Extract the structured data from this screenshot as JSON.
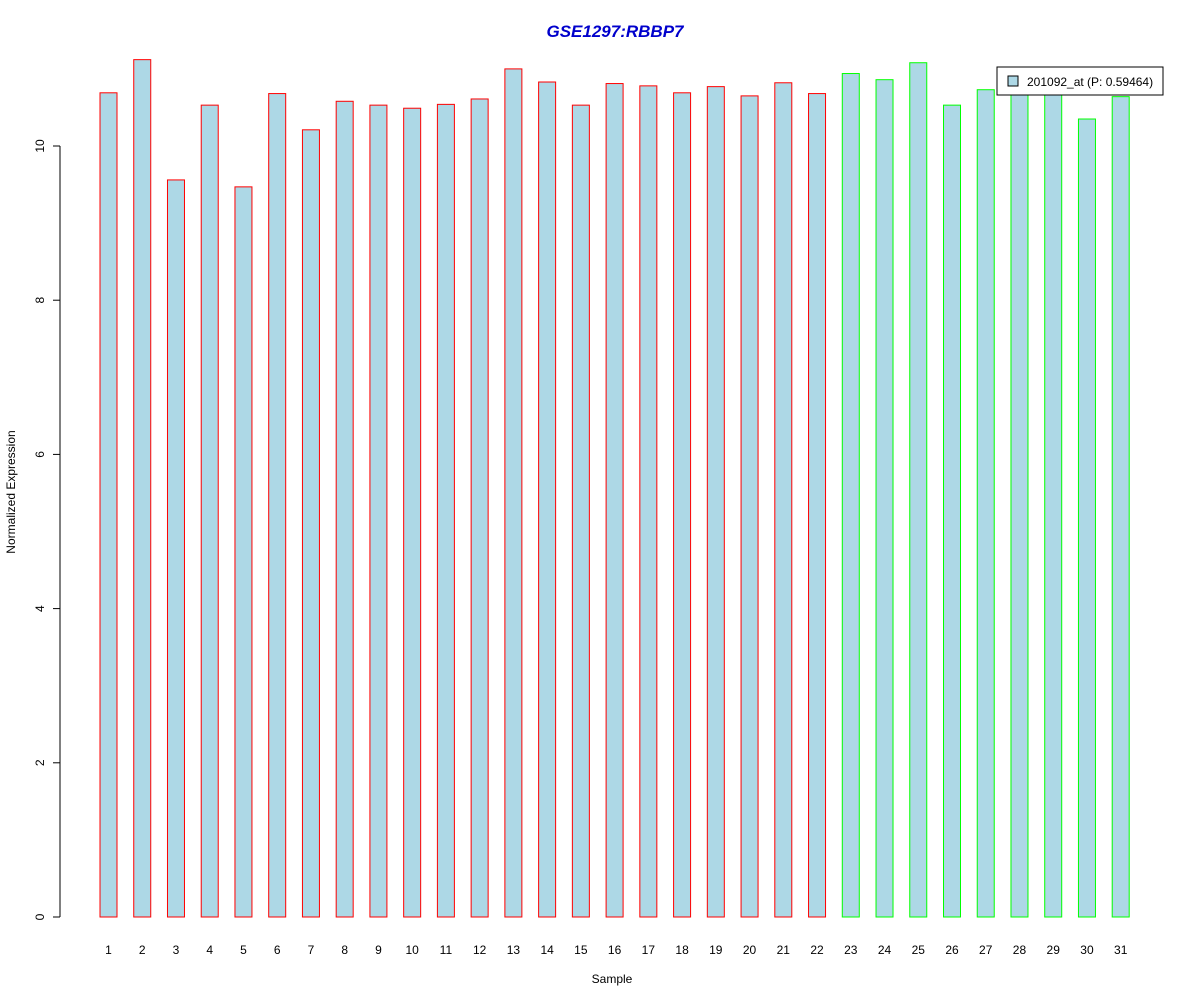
{
  "colors": {
    "title": "#0000CC",
    "bar_fill": "#ADD8E6",
    "group1_border": "#FF0000",
    "group2_border": "#00FF00",
    "axis": "#000000"
  },
  "chart_data": {
    "type": "bar",
    "title": "GSE1297:RBBP7",
    "xlabel": "Sample",
    "ylabel": "Normalized Expression",
    "ylim": [
      0,
      11.2
    ],
    "yticks": [
      0,
      2,
      4,
      6,
      8,
      10
    ],
    "grid": false,
    "legend_position": "top-right",
    "categories": [
      "1",
      "2",
      "3",
      "4",
      "5",
      "6",
      "7",
      "8",
      "9",
      "10",
      "11",
      "12",
      "13",
      "14",
      "15",
      "16",
      "17",
      "18",
      "19",
      "20",
      "21",
      "22",
      "23",
      "24",
      "25",
      "26",
      "27",
      "28",
      "29",
      "30",
      "31"
    ],
    "series": [
      {
        "name": "201092_at (P: 0.59464)",
        "values": [
          10.69,
          11.12,
          9.56,
          10.53,
          9.47,
          10.68,
          10.21,
          10.58,
          10.53,
          10.49,
          10.54,
          10.61,
          11.0,
          10.83,
          10.53,
          10.81,
          10.78,
          10.69,
          10.77,
          10.65,
          10.82,
          10.68,
          10.94,
          10.86,
          11.08,
          10.53,
          10.73,
          10.67,
          10.68,
          10.35,
          10.64
        ]
      }
    ],
    "groups": [
      1,
      1,
      1,
      1,
      1,
      1,
      1,
      1,
      1,
      1,
      1,
      1,
      1,
      1,
      1,
      1,
      1,
      1,
      1,
      1,
      1,
      1,
      2,
      2,
      2,
      2,
      2,
      2,
      2,
      2,
      2
    ]
  }
}
